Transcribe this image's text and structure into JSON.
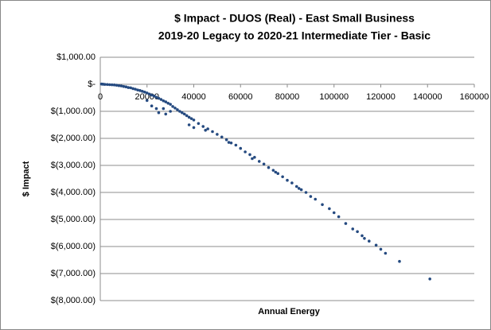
{
  "chart_data": {
    "type": "scatter",
    "title": "$ Impact - DUOS (Real) - East Small Business",
    "subtitle": "2019-20 Legacy to 2020-21 Intermediate Tier - Basic",
    "x_label": "Annual Energy",
    "y_label": "$ Impact",
    "color": "#254a80",
    "grid": true,
    "xlim": [
      0,
      160000
    ],
    "ylim": [
      -8000,
      1000
    ],
    "xticks": [
      0,
      20000,
      40000,
      60000,
      80000,
      100000,
      120000,
      140000,
      160000
    ],
    "yticks": [
      {
        "value": 1000,
        "label": "$1,000.00"
      },
      {
        "value": 0,
        "label": "$-"
      },
      {
        "value": -1000,
        "label": "$(1,000.00)"
      },
      {
        "value": -2000,
        "label": "$(2,000.00)"
      },
      {
        "value": -3000,
        "label": "$(3,000.00)"
      },
      {
        "value": -4000,
        "label": "$(4,000.00)"
      },
      {
        "value": -5000,
        "label": "$(5,000.00)"
      },
      {
        "value": -6000,
        "label": "$(6,000.00)"
      },
      {
        "value": -7000,
        "label": "$(7,000.00)"
      },
      {
        "value": -8000,
        "label": "$(8,000.00)"
      }
    ],
    "x": [
      500,
      1000,
      1500,
      2000,
      3000,
      4000,
      5000,
      6000,
      7000,
      8000,
      9000,
      10000,
      11000,
      12000,
      13000,
      14000,
      15000,
      16000,
      17000,
      18000,
      19000,
      20000,
      21000,
      22000,
      23000,
      24000,
      25000,
      26000,
      27000,
      28000,
      29000,
      30000,
      20000,
      22000,
      24000,
      25000,
      27000,
      28000,
      30000,
      31000,
      32000,
      33000,
      34000,
      35000,
      36000,
      37000,
      38000,
      39000,
      40000,
      38000,
      40000,
      42000,
      44000,
      45000,
      46000,
      48000,
      50000,
      52000,
      54000,
      55000,
      56000,
      58000,
      60000,
      62000,
      64000,
      65000,
      66000,
      68000,
      70000,
      72000,
      74000,
      75000,
      76000,
      78000,
      80000,
      82000,
      84000,
      85000,
      86000,
      88000,
      90000,
      92000,
      95000,
      98000,
      100000,
      102000,
      105000,
      108000,
      110000,
      112000,
      113000,
      115000,
      118000,
      120000,
      122000,
      128000,
      141000
    ],
    "values": [
      10,
      5,
      0,
      -5,
      -8,
      -15,
      -20,
      -25,
      -35,
      -50,
      -60,
      -80,
      -95,
      -120,
      -130,
      -160,
      -180,
      -210,
      -230,
      -260,
      -290,
      -320,
      -360,
      -400,
      -430,
      -480,
      -520,
      -560,
      -610,
      -650,
      -700,
      -740,
      -600,
      -800,
      -900,
      -1050,
      -900,
      -1100,
      -1000,
      -820,
      -880,
      -940,
      -1000,
      -1050,
      -1100,
      -1160,
      -1220,
      -1270,
      -1320,
      -1500,
      -1600,
      -1450,
      -1560,
      -1700,
      -1650,
      -1750,
      -1850,
      -1950,
      -2050,
      -2150,
      -2170,
      -2250,
      -2370,
      -2500,
      -2600,
      -2750,
      -2700,
      -2850,
      -2950,
      -3080,
      -3180,
      -3250,
      -3300,
      -3420,
      -3550,
      -3650,
      -3780,
      -3850,
      -3900,
      -4000,
      -4150,
      -4250,
      -4450,
      -4600,
      -4750,
      -4900,
      -5150,
      -5350,
      -5450,
      -5600,
      -5700,
      -5800,
      -5950,
      -6100,
      -6250,
      -6550,
      -7200
    ]
  }
}
